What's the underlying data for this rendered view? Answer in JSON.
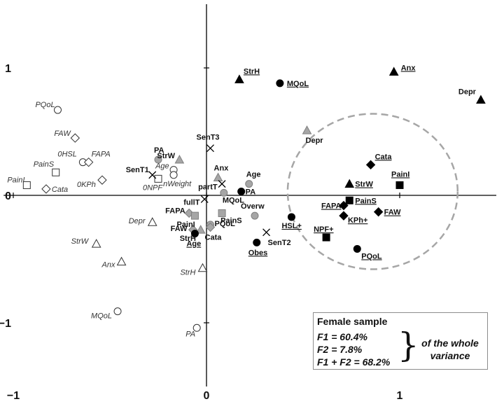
{
  "chart_data": {
    "type": "scatter",
    "xlim": [
      -1.05,
      1.5
    ],
    "ylim": [
      -1.5,
      1.5
    ],
    "x_ticks": [
      {
        "v": -1,
        "label": "−1"
      },
      {
        "v": 0,
        "label": "0"
      },
      {
        "v": 1,
        "label": "1"
      }
    ],
    "y_ticks": [
      {
        "v": 1,
        "label": "1"
      },
      {
        "v": 0,
        "label": "0"
      },
      {
        "v": -1,
        "label": "−1"
      }
    ],
    "grid": false,
    "points": [
      {
        "label": "PQoL",
        "x": -0.77,
        "y": 0.67,
        "marker": "circle-open",
        "dx": -32,
        "dy": -4,
        "style": "italic"
      },
      {
        "label": "FAW",
        "x": -0.68,
        "y": 0.45,
        "marker": "diamond-open",
        "dx": -30,
        "dy": -3,
        "style": "italic"
      },
      {
        "label": "0HSL",
        "x": -0.64,
        "y": 0.26,
        "marker": "circle-open",
        "dx": -36,
        "dy": -8,
        "style": "italic"
      },
      {
        "label": "FAPA",
        "x": -0.61,
        "y": 0.26,
        "marker": "diamond-open",
        "dx": 4,
        "dy": -8,
        "style": "italic"
      },
      {
        "label": "PainS",
        "x": -0.78,
        "y": 0.18,
        "marker": "square-open",
        "dx": -32,
        "dy": -8,
        "style": "italic"
      },
      {
        "label": "0KPh",
        "x": -0.54,
        "y": 0.12,
        "marker": "diamond-open",
        "dx": -36,
        "dy": 10,
        "style": "italic"
      },
      {
        "label": "PainI",
        "x": -0.93,
        "y": 0.08,
        "marker": "square-open",
        "dx": -28,
        "dy": -4,
        "style": "italic"
      },
      {
        "label": "Cata",
        "x": -0.83,
        "y": 0.05,
        "marker": "diamond-open",
        "dx": 8,
        "dy": 4,
        "style": "italic"
      },
      {
        "label": "Depr",
        "x": -0.28,
        "y": -0.21,
        "marker": "triangle-open",
        "dx": -34,
        "dy": 2,
        "style": "italic"
      },
      {
        "label": "StrW",
        "x": -0.57,
        "y": -0.38,
        "marker": "triangle-open",
        "dx": -36,
        "dy": 0,
        "style": "italic"
      },
      {
        "label": "Anx",
        "x": -0.44,
        "y": -0.52,
        "marker": "triangle-open",
        "dx": -28,
        "dy": 8,
        "style": "italic"
      },
      {
        "label": "StrH",
        "x": -0.02,
        "y": -0.57,
        "marker": "triangle-open",
        "dx": -32,
        "dy": 10,
        "style": "italic"
      },
      {
        "label": "MQoL",
        "x": -0.46,
        "y": -0.91,
        "marker": "circle-open",
        "dx": -38,
        "dy": 10,
        "style": "italic"
      },
      {
        "label": "PA",
        "x": -0.05,
        "y": -1.04,
        "marker": "circle-open",
        "dx": -16,
        "dy": 12,
        "style": "italic"
      },
      {
        "label": "Age",
        "x": -0.17,
        "y": 0.2,
        "marker": "circle-open",
        "dx": -26,
        "dy": -2,
        "style": "italic"
      },
      {
        "label": "0NPF",
        "x": -0.25,
        "y": 0.13,
        "marker": "square-open",
        "dx": -22,
        "dy": 16,
        "style": "italic"
      },
      {
        "label": "nWeight",
        "x": -0.17,
        "y": 0.16,
        "marker": "circle-open",
        "dx": -15,
        "dy": 16,
        "style": "italic"
      },
      {
        "label": "PA",
        "x": -0.25,
        "y": 0.28,
        "marker": "circle-gray",
        "dx": -6,
        "dy": -10,
        "style": "bold"
      },
      {
        "label": "StrW",
        "x": -0.14,
        "y": 0.28,
        "marker": "triangle-gray",
        "dx": -32,
        "dy": -2,
        "style": "bold"
      },
      {
        "label": "Anx",
        "x": 0.06,
        "y": 0.14,
        "marker": "triangle-gray",
        "dx": -6,
        "dy": -10,
        "style": "bold"
      },
      {
        "label": "Age",
        "x": 0.22,
        "y": 0.09,
        "marker": "circle-gray",
        "dx": -4,
        "dy": -10,
        "style": "bold"
      },
      {
        "label": "MQoL",
        "x": 0.09,
        "y": 0.02,
        "marker": "circle-gray",
        "dx": -2,
        "dy": 14,
        "style": "bold"
      },
      {
        "label": "FAPA",
        "x": -0.09,
        "y": -0.14,
        "marker": "diamond-gray",
        "dx": -34,
        "dy": 0,
        "style": "bold"
      },
      {
        "label": "PainI",
        "x": -0.06,
        "y": -0.16,
        "marker": "square-gray",
        "dx": -26,
        "dy": 16,
        "style": "bold"
      },
      {
        "label": "PainS",
        "x": 0.08,
        "y": -0.14,
        "marker": "square-gray",
        "dx": -2,
        "dy": 14,
        "style": "bold"
      },
      {
        "label": "FAW",
        "x": -0.07,
        "y": -0.27,
        "marker": "diamond-gray",
        "dx": -32,
        "dy": 2,
        "style": "bold"
      },
      {
        "label": "StrH",
        "x": -0.03,
        "y": -0.27,
        "marker": "triangle-gray",
        "dx": -30,
        "dy": 16,
        "style": "bold"
      },
      {
        "label": "PQoL",
        "x": 0.02,
        "y": -0.23,
        "marker": "circle-gray",
        "dx": 6,
        "dy": 2,
        "style": "bold"
      },
      {
        "label": "Cata",
        "x": 0.02,
        "y": -0.25,
        "marker": "diamond-gray",
        "dx": -8,
        "dy": 18,
        "style": "bold"
      },
      {
        "label": "Overw",
        "x": 0.25,
        "y": -0.16,
        "marker": "circle-gray",
        "dx": -20,
        "dy": -10,
        "style": "bold"
      },
      {
        "label": "Depr",
        "x": 0.52,
        "y": 0.51,
        "marker": "triangle-gray",
        "dx": -2,
        "dy": 18,
        "style": "bold"
      },
      {
        "label": "Age",
        "x": -0.06,
        "y": -0.3,
        "marker": "circle-black",
        "dx": -12,
        "dy": 18,
        "style": "bold-u"
      },
      {
        "label": "PA",
        "x": 0.18,
        "y": 0.03,
        "marker": "circle-black",
        "dx": 6,
        "dy": 4,
        "style": "bold-u"
      },
      {
        "label": "StrH",
        "x": 0.17,
        "y": 0.91,
        "marker": "triangle-black",
        "dx": 6,
        "dy": -8,
        "style": "bold-u"
      },
      {
        "label": "MQoL",
        "x": 0.38,
        "y": 0.88,
        "marker": "circle-black",
        "dx": 10,
        "dy": 4,
        "style": "bold-u"
      },
      {
        "label": "Anx",
        "x": 0.97,
        "y": 0.97,
        "marker": "triangle-black",
        "dx": 10,
        "dy": -2,
        "style": "bold-u"
      },
      {
        "label": "Depr",
        "x": 1.42,
        "y": 0.75,
        "marker": "triangle-black",
        "dx": -32,
        "dy": -8,
        "style": "bold"
      },
      {
        "label": "Cata",
        "x": 0.85,
        "y": 0.24,
        "marker": "diamond-black",
        "dx": 6,
        "dy": -8,
        "style": "bold-u"
      },
      {
        "label": "PainI",
        "x": 1.0,
        "y": 0.08,
        "marker": "square-black",
        "dx": -12,
        "dy": -12,
        "style": "bold-u"
      },
      {
        "label": "StrW",
        "x": 0.74,
        "y": 0.09,
        "marker": "triangle-black",
        "dx": 8,
        "dy": 4,
        "style": "bold-u"
      },
      {
        "label": "PainS",
        "x": 0.74,
        "y": -0.04,
        "marker": "square-black",
        "dx": 8,
        "dy": 4,
        "style": "bold-u"
      },
      {
        "label": "FAPA",
        "x": 0.71,
        "y": -0.08,
        "marker": "diamond-black",
        "dx": -32,
        "dy": 4,
        "style": "bold-u"
      },
      {
        "label": "FAW",
        "x": 0.89,
        "y": -0.13,
        "marker": "diamond-black",
        "dx": 8,
        "dy": 4,
        "style": "bold-u"
      },
      {
        "label": "KPh+",
        "x": 0.71,
        "y": -0.16,
        "marker": "diamond-black",
        "dx": 6,
        "dy": 10,
        "style": "bold-u"
      },
      {
        "label": "HSL+",
        "x": 0.44,
        "y": -0.17,
        "marker": "circle-black",
        "dx": -14,
        "dy": 16,
        "style": "bold-u"
      },
      {
        "label": "NPF+",
        "x": 0.62,
        "y": -0.33,
        "marker": "square-black",
        "dx": -18,
        "dy": -8,
        "style": "bold-u"
      },
      {
        "label": "PQoL",
        "x": 0.78,
        "y": -0.42,
        "marker": "circle-black",
        "dx": 6,
        "dy": 14,
        "style": "bold-u"
      },
      {
        "label": "Obes",
        "x": 0.26,
        "y": -0.37,
        "marker": "circle-black",
        "dx": -12,
        "dy": 18,
        "style": "bold-u"
      },
      {
        "label": "SenT3",
        "x": 0.02,
        "y": 0.37,
        "marker": "cross",
        "dx": -20,
        "dy": -12,
        "style": "bold"
      },
      {
        "label": "SenT1",
        "x": -0.28,
        "y": 0.16,
        "marker": "cross",
        "dx": -38,
        "dy": -4,
        "style": "bold"
      },
      {
        "label": "partT",
        "x": 0.08,
        "y": 0.09,
        "marker": "cross",
        "dx": -34,
        "dy": 8,
        "style": "bold"
      },
      {
        "label": "fullT",
        "x": -0.01,
        "y": -0.03,
        "marker": "cross",
        "dx": -30,
        "dy": 8,
        "style": "bold"
      },
      {
        "label": "SenT2",
        "x": 0.31,
        "y": -0.29,
        "marker": "cross",
        "dx": 2,
        "dy": 18,
        "style": "bold"
      }
    ],
    "ellipse": {
      "cx": 0.86,
      "cy": 0.03,
      "rx": 0.44,
      "ry": 0.61,
      "stroke": "#a6a6a6"
    },
    "colors": {
      "black": "#000000",
      "gray": "#a6a6a6",
      "open": "#ffffff",
      "open_stroke": "#333333"
    }
  },
  "legend": {
    "title": "Female sample",
    "f1": "F1 = 60.4%",
    "f2": "F2 = 7.8%",
    "f1f2": "F1 + F2 = 68.2%",
    "brace": "}",
    "note_line1": "of the whole",
    "note_line2": "variance"
  }
}
